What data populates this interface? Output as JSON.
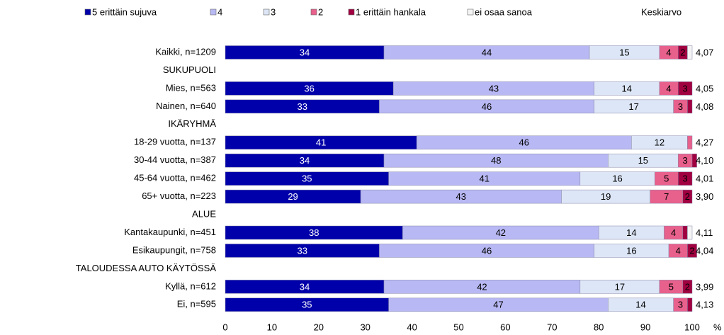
{
  "chart_data": {
    "type": "stacked-barh",
    "categories": [
      "Kaikki, n=1209",
      "SUKUPUOLI",
      "Mies, n=563",
      "Nainen, n=640",
      "IKÄRYHMÄ",
      "18-29 vuotta, n=137",
      "30-44 vuotta, n=387",
      "45-64 vuotta, n=462",
      "65+ vuotta, n=223",
      "ALUE",
      "Kantakaupunki, n=451",
      "Esikaupungit, n=758",
      "TALOUDESSA AUTO KÄYTÖSSÄ",
      "Kyllä, n=612",
      "Ei, n=595"
    ],
    "series": [
      {
        "name": "5 erittäin sujuva",
        "color": "#0000aa",
        "values": [
          34,
          null,
          36,
          33,
          null,
          41,
          34,
          35,
          29,
          null,
          38,
          33,
          null,
          34,
          35
        ]
      },
      {
        "name": "4",
        "color": "#b8b8f4",
        "values": [
          44,
          null,
          43,
          46,
          null,
          46,
          48,
          41,
          43,
          null,
          42,
          46,
          null,
          42,
          47
        ]
      },
      {
        "name": "3",
        "color": "#dde6f6",
        "values": [
          15,
          null,
          14,
          17,
          null,
          12,
          15,
          16,
          19,
          null,
          14,
          16,
          null,
          17,
          14
        ]
      },
      {
        "name": "2",
        "color": "#e8608c",
        "values": [
          4,
          null,
          4,
          3,
          null,
          1,
          3,
          5,
          7,
          null,
          4,
          4,
          null,
          5,
          3
        ]
      },
      {
        "name": "1 erittäin hankala",
        "color": "#a00040",
        "values": [
          2,
          null,
          3,
          1,
          null,
          0,
          1,
          3,
          2,
          null,
          1,
          2,
          null,
          2,
          1
        ]
      },
      {
        "name": "ei osaa sanoa",
        "color": "#f4f4f4",
        "values": [
          1,
          null,
          0,
          0,
          null,
          0,
          0,
          0,
          0,
          null,
          1,
          0,
          null,
          0,
          0
        ]
      }
    ],
    "averages": {
      "name": "Keskiarvo",
      "values": [
        4.07,
        null,
        4.05,
        4.08,
        null,
        4.27,
        4.1,
        4.01,
        3.9,
        null,
        4.11,
        4.04,
        null,
        3.99,
        4.13
      ],
      "value_labels": [
        "4,07",
        null,
        "4,05",
        "4,08",
        null,
        "4,27",
        "4,10",
        "4,01",
        "3,90",
        null,
        "4,11",
        "4,04",
        null,
        "3,99",
        "4,13"
      ]
    },
    "xlim": [
      0,
      100
    ],
    "xticks": [
      0,
      10,
      20,
      30,
      40,
      50,
      60,
      70,
      80,
      90,
      100
    ],
    "x_unit": "%"
  }
}
